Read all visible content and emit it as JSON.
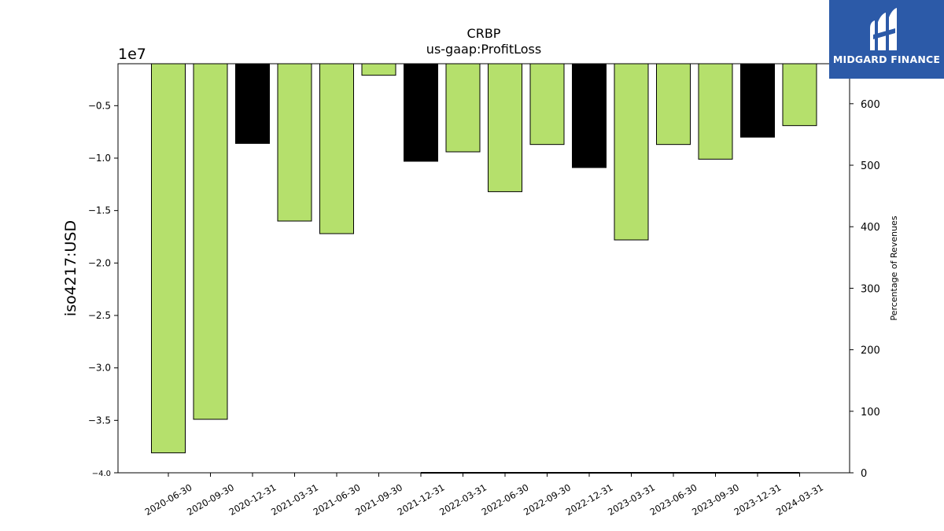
{
  "logo": {
    "text": "MIDGARD FINANCE",
    "bg_color": "#2c5aa8"
  },
  "chart_data": {
    "type": "bar",
    "title": "CRBP",
    "subtitle": "us-gaap:ProfitLoss",
    "ylabel": "iso4217:USD",
    "y_offset_text": "1e7",
    "ylabel_right": "Percentage of Revenues",
    "categories": [
      "2020-06-30",
      "2020-09-30",
      "2020-12-31",
      "2021-03-31",
      "2021-06-30",
      "2021-09-30",
      "2021-12-31",
      "2022-03-31",
      "2022-06-30",
      "2022-09-30",
      "2022-12-31",
      "2023-03-31",
      "2023-06-30",
      "2023-09-30",
      "2023-12-31",
      "2024-03-31"
    ],
    "values": [
      -38100000,
      -34900000,
      -8600000,
      -16000000,
      -17200000,
      -2100000,
      -10300000,
      -9400000,
      -13200000,
      -8700000,
      -10900000,
      -17800000,
      -8700000,
      -10100000,
      -8000000,
      -6900000
    ],
    "bar_colors": [
      "#b5e06c",
      "#b5e06c",
      "#000000",
      "#b5e06c",
      "#b5e06c",
      "#b5e06c",
      "#000000",
      "#b5e06c",
      "#b5e06c",
      "#b5e06c",
      "#000000",
      "#b5e06c",
      "#b5e06c",
      "#b5e06c",
      "#000000",
      "#b5e06c"
    ],
    "ylim": [
      -40000000,
      -1000000
    ],
    "yticks": [
      -35000000,
      -30000000,
      -25000000,
      -20000000,
      -15000000,
      -10000000,
      -5000000
    ],
    "yticks_labels": [
      "−3.5",
      "−3.0",
      "−2.5",
      "−2.0",
      "−1.5",
      "−1.0",
      "−0.5"
    ],
    "ylim_right": [
      0,
      665
    ],
    "yticks_right": [
      0,
      100,
      200,
      300,
      400,
      500,
      600
    ],
    "yticks_right_labels": [
      "0",
      "100",
      "200",
      "300",
      "400",
      "500",
      "600"
    ],
    "bottom_label": "−4.0",
    "right_series": {
      "name": "",
      "x": [
        "2021-12-31",
        "2022-03-31",
        "2022-06-30",
        "2022-09-30",
        "2022-12-31",
        "2023-03-31",
        "2023-06-30",
        "2023-09-30",
        "2023-12-31",
        "2024-03-31"
      ],
      "values": [
        0,
        0,
        0,
        0,
        0,
        0,
        0,
        0,
        0,
        0
      ]
    },
    "grid": false,
    "legend": false
  }
}
